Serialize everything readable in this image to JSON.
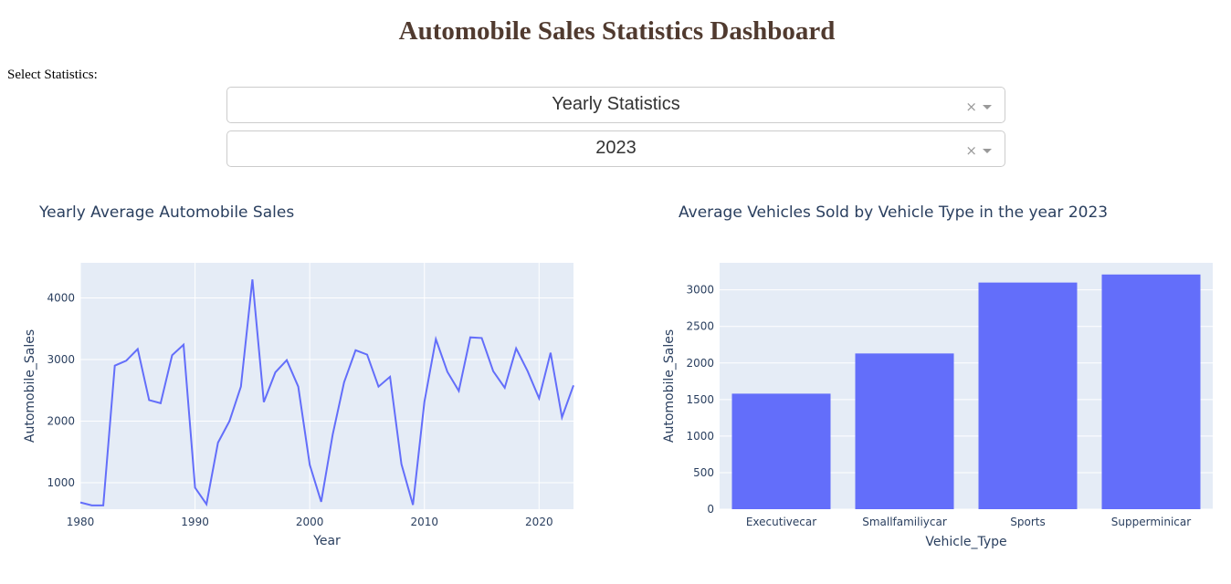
{
  "page_title": "Automobile Sales Statistics Dashboard",
  "select_label": "Select Statistics:",
  "dropdowns": [
    {
      "value": "Yearly Statistics",
      "clear": "×"
    },
    {
      "value": "2023",
      "clear": "×"
    }
  ],
  "colors": {
    "plot_bg": "#e5ecf6",
    "series": "#636efa",
    "text": "#2a3f5f",
    "title": "#503a2f"
  },
  "chart_data": [
    {
      "type": "line",
      "title": "Yearly Average Automobile Sales",
      "xlabel": "Year",
      "ylabel": "Automobile_Sales",
      "xlim": [
        1980,
        2023
      ],
      "ylim": [
        570,
        4570
      ],
      "xticks": [
        1980,
        1990,
        2000,
        2010,
        2020
      ],
      "yticks": [
        1000,
        2000,
        3000,
        4000
      ],
      "grid": true,
      "x": [
        1980,
        1981,
        1982,
        1983,
        1984,
        1985,
        1986,
        1987,
        1988,
        1989,
        1990,
        1991,
        1992,
        1993,
        1994,
        1995,
        1996,
        1997,
        1998,
        1999,
        2000,
        2001,
        2002,
        2003,
        2004,
        2005,
        2006,
        2007,
        2008,
        2009,
        2010,
        2011,
        2012,
        2013,
        2014,
        2015,
        2016,
        2017,
        2018,
        2019,
        2020,
        2021,
        2022,
        2023
      ],
      "y": [
        680,
        630,
        630,
        2900,
        2980,
        3170,
        2340,
        2290,
        3070,
        3240,
        920,
        650,
        1650,
        2000,
        2560,
        4300,
        2310,
        2790,
        2990,
        2560,
        1290,
        690,
        1780,
        2630,
        3150,
        3080,
        2560,
        2720,
        1300,
        640,
        2310,
        3330,
        2800,
        2490,
        3360,
        3350,
        2810,
        2540,
        3180,
        2810,
        2370,
        3110,
        2060,
        2580
      ]
    },
    {
      "type": "bar",
      "title": "Average Vehicles Sold by Vehicle Type in the year 2023",
      "xlabel": "Vehicle_Type",
      "ylabel": "Automobile_Sales",
      "ylim": [
        0,
        3370
      ],
      "yticks": [
        0,
        500,
        1000,
        1500,
        2000,
        2500,
        3000
      ],
      "grid": true,
      "categories": [
        "Executivecar",
        "Smallfamiliycar",
        "Sports",
        "Supperminicar"
      ],
      "values": [
        1580,
        2130,
        3100,
        3210
      ]
    }
  ]
}
